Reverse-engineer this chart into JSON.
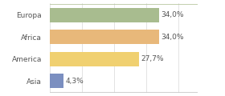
{
  "categories": [
    "Europa",
    "Africa",
    "America",
    "Asia"
  ],
  "values": [
    34.0,
    34.0,
    27.7,
    4.3
  ],
  "labels": [
    "34,0%",
    "34,0%",
    "27,7%",
    "4,3%"
  ],
  "bar_colors": [
    "#a8bc8f",
    "#e8b87a",
    "#f0d070",
    "#7b8fc0"
  ],
  "background_color": "#ffffff",
  "plot_bg_color": "#ffffff",
  "xlim": [
    0,
    46
  ],
  "label_fontsize": 6.5,
  "category_fontsize": 6.5,
  "bar_height": 0.65,
  "top_line_color": "#b8c8a0",
  "bottom_line_color": "#c8c8c8",
  "grid_color": "#d8d8d8"
}
